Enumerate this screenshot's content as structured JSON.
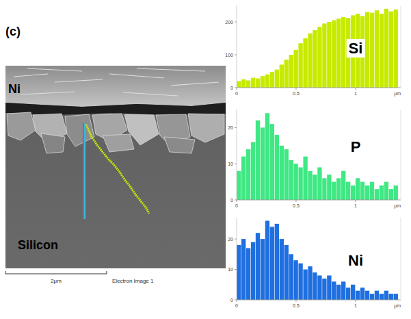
{
  "figure": {
    "panel_label": "(c)",
    "image": {
      "labels": [
        "Ni",
        "Silicon"
      ],
      "scale_bar": "2μm",
      "caption": "Electron Image 1"
    }
  },
  "chart_data": [
    {
      "type": "bar",
      "title": "Si",
      "color": "#c8ea00",
      "x": [
        0,
        0.04,
        0.08,
        0.12,
        0.16,
        0.2,
        0.24,
        0.28,
        0.32,
        0.36,
        0.4,
        0.44,
        0.48,
        0.52,
        0.56,
        0.6,
        0.64,
        0.68,
        0.72,
        0.76,
        0.8,
        0.84,
        0.88,
        0.92,
        0.96,
        1,
        1.04,
        1.08,
        1.12,
        1.16,
        1.2,
        1.24,
        1.28,
        1.32
      ],
      "values": [
        20,
        25,
        22,
        30,
        28,
        35,
        40,
        48,
        55,
        70,
        85,
        100,
        115,
        135,
        150,
        165,
        175,
        185,
        195,
        200,
        205,
        210,
        215,
        212,
        220,
        225,
        218,
        230,
        228,
        235,
        225,
        240,
        232,
        238
      ],
      "xlim": [
        0,
        1.38
      ],
      "xticks": [
        0,
        0.5,
        1
      ],
      "ylim": [
        0,
        250
      ],
      "yticks": [
        0,
        100,
        200
      ],
      "x_label": "μm"
    },
    {
      "type": "bar",
      "title": "P",
      "color": "#3fe883",
      "x": [
        0,
        0.04,
        0.08,
        0.12,
        0.16,
        0.2,
        0.24,
        0.28,
        0.32,
        0.36,
        0.4,
        0.44,
        0.48,
        0.52,
        0.56,
        0.6,
        0.64,
        0.68,
        0.72,
        0.76,
        0.8,
        0.84,
        0.88,
        0.92,
        0.96,
        1,
        1.04,
        1.08,
        1.12,
        1.16,
        1.2,
        1.24,
        1.28,
        1.32
      ],
      "values": [
        8,
        12,
        14,
        16,
        22,
        20,
        24,
        21,
        18,
        15,
        14,
        11,
        10,
        9,
        12,
        8,
        7,
        9,
        6,
        7,
        5,
        6,
        8,
        5,
        4,
        6,
        5,
        4,
        5,
        3,
        4,
        5,
        3,
        4
      ],
      "xlim": [
        0,
        1.38
      ],
      "xticks": [
        0,
        0.5,
        1
      ],
      "ylim": [
        0,
        25
      ],
      "yticks": [
        0,
        10,
        20
      ],
      "x_label": "μm"
    },
    {
      "type": "bar",
      "title": "Ni",
      "color": "#1f6fe0",
      "x": [
        0,
        0.04,
        0.08,
        0.12,
        0.16,
        0.2,
        0.24,
        0.28,
        0.32,
        0.36,
        0.4,
        0.44,
        0.48,
        0.52,
        0.56,
        0.6,
        0.64,
        0.68,
        0.72,
        0.76,
        0.8,
        0.84,
        0.88,
        0.92,
        0.96,
        1,
        1.04,
        1.08,
        1.12,
        1.16,
        1.2,
        1.24,
        1.28,
        1.32
      ],
      "values": [
        18,
        20,
        17,
        19,
        22,
        20,
        26,
        24,
        25,
        20,
        18,
        15,
        13,
        12,
        10,
        11,
        9,
        8,
        7,
        8,
        6,
        5,
        6,
        4,
        5,
        3,
        4,
        3,
        2,
        3,
        2,
        3,
        2,
        2
      ],
      "xlim": [
        0,
        1.38
      ],
      "xticks": [
        0,
        0.5,
        1
      ],
      "ylim": [
        0,
        27
      ],
      "yticks": [
        0,
        10,
        20
      ],
      "x_label": "μm"
    }
  ]
}
